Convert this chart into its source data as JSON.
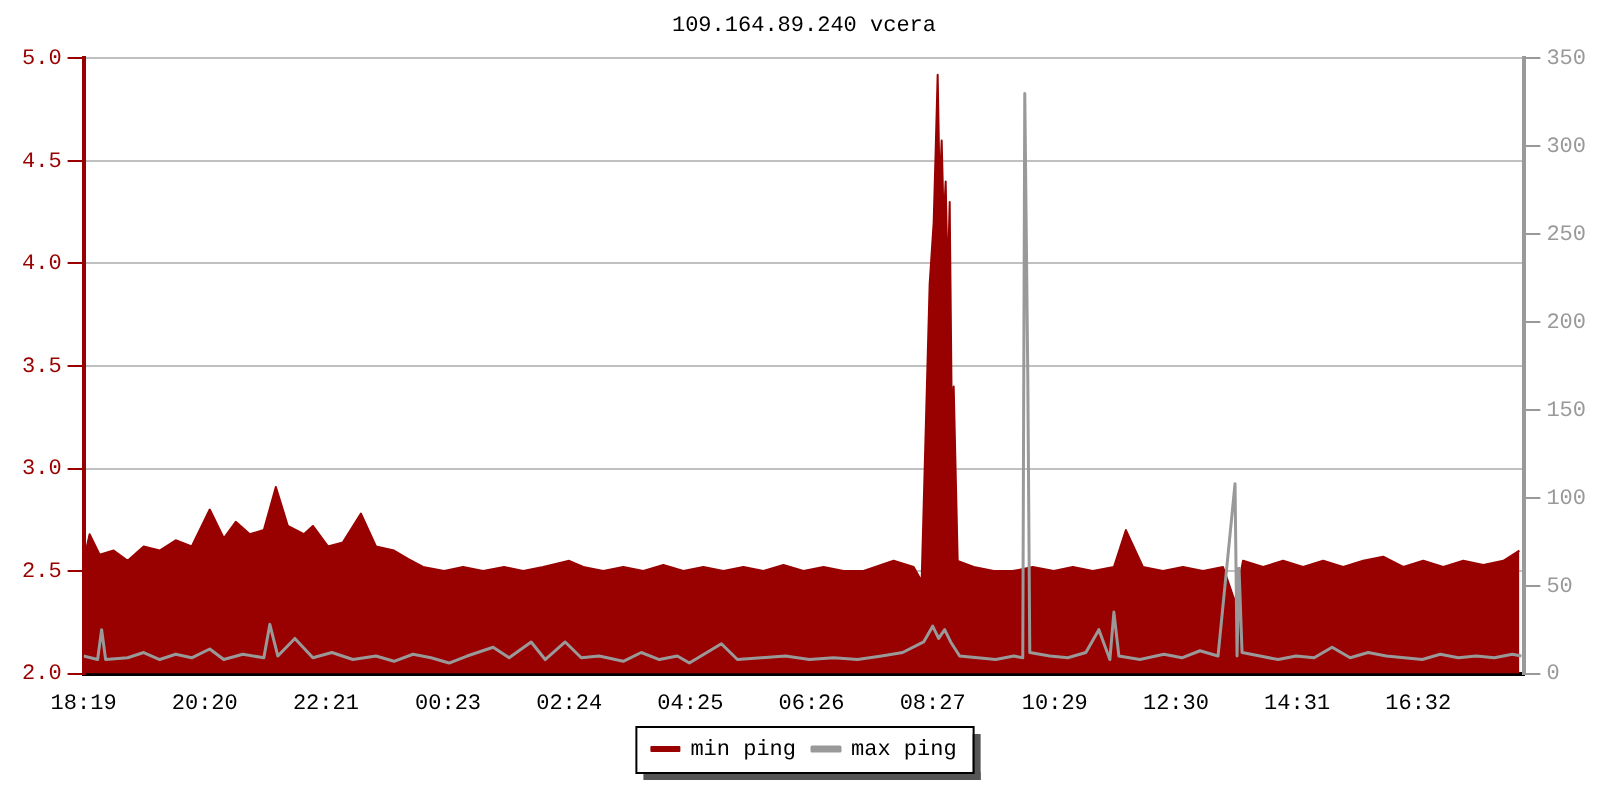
{
  "chart_data": {
    "type": "area",
    "title": "109.164.89.240 vcera",
    "legend": "bottom",
    "grid": "y",
    "marker": "none",
    "line_style": "solid",
    "xlim": [
      "--01-01T18:19",
      "--01-02T18:18"
    ],
    "xticks": [
      {
        "value": "--01-01T18:19",
        "label": "18:19"
      },
      {
        "value": "--01-01T20:20",
        "label": "20:20"
      },
      {
        "value": "--01-01T22:21",
        "label": "22:21"
      },
      {
        "value": "--01-02T00:23",
        "label": "00:23"
      },
      {
        "value": "--01-02T02:24",
        "label": "02:24"
      },
      {
        "value": "--01-02T04:25",
        "label": "04:25"
      },
      {
        "value": "--01-02T06:26",
        "label": "06:26"
      },
      {
        "value": "--01-02T08:27",
        "label": "08:27"
      },
      {
        "value": "--01-02T10:29",
        "label": "10:29"
      },
      {
        "value": "--01-02T12:30",
        "label": "12:30"
      },
      {
        "value": "--01-02T14:31",
        "label": "14:31"
      },
      {
        "value": "--01-02T16:32",
        "label": "16:32"
      }
    ],
    "ylim": [
      2,
      5
    ],
    "yticks": [
      {
        "value": 2,
        "label": "2.0"
      },
      2.5,
      {
        "value": 3,
        "label": "3.0"
      },
      3.5,
      {
        "value": 4,
        "label": "4.0"
      },
      4.5,
      {
        "value": 5,
        "label": "5.0"
      }
    ],
    "y2lim": [
      0,
      350
    ],
    "y2ticks": [
      0,
      50,
      100,
      150,
      200,
      250,
      300,
      350
    ],
    "series": [
      {
        "name": "min ping",
        "type": "area",
        "color": "#990000",
        "x": [
          "--01-01T18:19",
          "--01-01T18:25",
          "--01-01T18:35",
          "--01-01T18:49",
          "--01-01T19:03",
          "--01-01T19:19",
          "--01-01T19:35",
          "--01-01T19:51",
          "--01-01T20:07",
          "--01-01T20:25",
          "--01-01T20:39",
          "--01-01T20:51",
          "--01-01T21:05",
          "--01-01T21:19",
          "--01-01T21:31",
          "--01-01T21:43",
          "--01-01T21:59",
          "--01-01T22:08",
          "--01-01T22:23",
          "--01-01T22:38",
          "--01-01T22:56",
          "--01-01T23:11",
          "--01-01T23:29",
          "--01-01T23:43",
          "--01-01T23:58",
          "--01-02T00:19",
          "--01-02T00:38",
          "--01-02T00:58",
          "--01-02T01:19",
          "--01-02T01:38",
          "--01-02T01:58",
          "--01-02T02:24",
          "--01-02T02:38",
          "--01-02T02:58",
          "--01-02T03:18",
          "--01-02T03:38",
          "--01-02T03:58",
          "--01-02T04:18",
          "--01-02T04:38",
          "--01-02T04:58",
          "--01-02T05:18",
          "--01-02T05:38",
          "--01-02T05:58",
          "--01-02T06:18",
          "--01-02T06:38",
          "--01-02T06:58",
          "--01-02T07:18",
          "--01-02T07:48",
          "--01-02T08:08",
          "--01-02T08:16",
          "--01-02T08:24",
          "--01-02T08:28",
          "--01-02T08:30",
          "--01-02T08:32",
          "--01-02T08:34",
          "--01-02T08:36",
          "--01-02T08:38",
          "--01-02T08:40",
          "--01-02T08:42",
          "--01-02T08:44",
          "--01-02T08:46",
          "--01-02T08:48",
          "--01-02T08:52",
          "--01-02T09:08",
          "--01-02T09:28",
          "--01-02T09:47",
          "--01-02T10:07",
          "--01-02T10:28",
          "--01-02T10:47",
          "--01-02T11:07",
          "--01-02T11:28",
          "--01-02T11:40",
          "--01-02T11:57",
          "--01-02T12:17",
          "--01-02T12:37",
          "--01-02T12:57",
          "--01-02T13:17",
          "--01-02T13:29",
          "--01-02T13:37",
          "--01-02T13:57",
          "--01-02T14:17",
          "--01-02T14:37",
          "--01-02T14:57",
          "--01-02T15:17",
          "--01-02T15:37",
          "--01-02T15:57",
          "--01-02T16:17",
          "--01-02T16:37",
          "--01-02T16:57",
          "--01-02T17:17",
          "--01-02T17:37",
          "--01-02T17:57",
          "--01-02T18:13"
        ],
        "values": [
          2.55,
          2.68,
          2.58,
          2.6,
          2.55,
          2.62,
          2.6,
          2.65,
          2.62,
          2.8,
          2.66,
          2.74,
          2.68,
          2.7,
          2.91,
          2.72,
          2.68,
          2.72,
          2.62,
          2.64,
          2.78,
          2.62,
          2.6,
          2.56,
          2.52,
          2.5,
          2.52,
          2.5,
          2.52,
          2.5,
          2.52,
          2.55,
          2.52,
          2.5,
          2.52,
          2.5,
          2.53,
          2.5,
          2.52,
          2.5,
          2.52,
          2.5,
          2.53,
          2.5,
          2.52,
          2.5,
          2.5,
          2.55,
          2.52,
          2.45,
          3.9,
          4.2,
          4.55,
          4.92,
          4.35,
          4.6,
          4.2,
          4.4,
          3.9,
          4.3,
          3.3,
          3.4,
          2.55,
          2.52,
          2.5,
          2.5,
          2.52,
          2.5,
          2.52,
          2.5,
          2.52,
          2.7,
          2.52,
          2.5,
          2.52,
          2.5,
          2.52,
          2.35,
          2.55,
          2.52,
          2.55,
          2.52,
          2.55,
          2.52,
          2.55,
          2.57,
          2.52,
          2.55,
          2.52,
          2.55,
          2.53,
          2.55,
          2.6
        ]
      },
      {
        "name": "max ping",
        "type": "line",
        "axis": "y2",
        "color": "#999999",
        "x": [
          "--01-01T18:19",
          "--01-01T18:33",
          "--01-01T18:37",
          "--01-01T18:41",
          "--01-01T19:03",
          "--01-01T19:19",
          "--01-01T19:35",
          "--01-01T19:51",
          "--01-01T20:07",
          "--01-01T20:25",
          "--01-01T20:39",
          "--01-01T20:58",
          "--01-01T21:19",
          "--01-01T21:25",
          "--01-01T21:33",
          "--01-01T21:50",
          "--01-01T22:08",
          "--01-01T22:27",
          "--01-01T22:48",
          "--01-01T23:11",
          "--01-01T23:29",
          "--01-01T23:48",
          "--01-02T00:06",
          "--01-02T00:24",
          "--01-02T00:42",
          "--01-02T01:08",
          "--01-02T01:24",
          "--01-02T01:46",
          "--01-02T02:00",
          "--01-02T02:20",
          "--01-02T02:36",
          "--01-02T02:54",
          "--01-02T03:18",
          "--01-02T03:36",
          "--01-02T03:54",
          "--01-02T04:12",
          "--01-02T04:24",
          "--01-02T04:56",
          "--01-02T05:12",
          "--01-02T05:36",
          "--01-02T06:00",
          "--01-02T06:24",
          "--01-02T06:48",
          "--01-02T07:12",
          "--01-02T07:36",
          "--01-02T07:57",
          "--01-02T08:18",
          "--01-02T08:27",
          "--01-02T08:33",
          "--01-02T08:39",
          "--01-02T08:45",
          "--01-02T08:54",
          "--01-02T09:12",
          "--01-02T09:30",
          "--01-02T09:48",
          "--01-02T09:57",
          "--01-02T09:59",
          "--01-02T10:02",
          "--01-02T10:04",
          "--01-02T10:24",
          "--01-02T10:42",
          "--01-02T11:00",
          "--01-02T11:13",
          "--01-02T11:24",
          "--01-02T11:28",
          "--01-02T11:33",
          "--01-02T11:54",
          "--01-02T12:18",
          "--01-02T12:36",
          "--01-02T12:54",
          "--01-02T13:12",
          "--01-02T13:29",
          "--01-02T13:31",
          "--01-02T13:33",
          "--01-02T13:36",
          "--01-02T13:54",
          "--01-02T14:12",
          "--01-02T14:30",
          "--01-02T14:48",
          "--01-02T15:06",
          "--01-02T15:24",
          "--01-02T15:42",
          "--01-02T16:00",
          "--01-02T16:18",
          "--01-02T16:36",
          "--01-02T16:54",
          "--01-02T17:12",
          "--01-02T17:30",
          "--01-02T17:48",
          "--01-02T18:06",
          "--01-02T18:15"
        ],
        "values": [
          10,
          8,
          25,
          8,
          9,
          12,
          8,
          11,
          9,
          14,
          8,
          11,
          9,
          28,
          10,
          20,
          9,
          12,
          8,
          10,
          7,
          11,
          9,
          6,
          10,
          15,
          9,
          18,
          8,
          18,
          9,
          10,
          7,
          12,
          8,
          10,
          6,
          17,
          8,
          9,
          10,
          8,
          9,
          8,
          10,
          12,
          18,
          27,
          20,
          25,
          18,
          10,
          9,
          8,
          10,
          9,
          330,
          170,
          12,
          10,
          9,
          12,
          25,
          8,
          35,
          10,
          8,
          11,
          9,
          13,
          10,
          108,
          10,
          60,
          12,
          10,
          8,
          10,
          9,
          15,
          9,
          12,
          10,
          9,
          8,
          11,
          9,
          10,
          9,
          11,
          10
        ]
      }
    ]
  }
}
